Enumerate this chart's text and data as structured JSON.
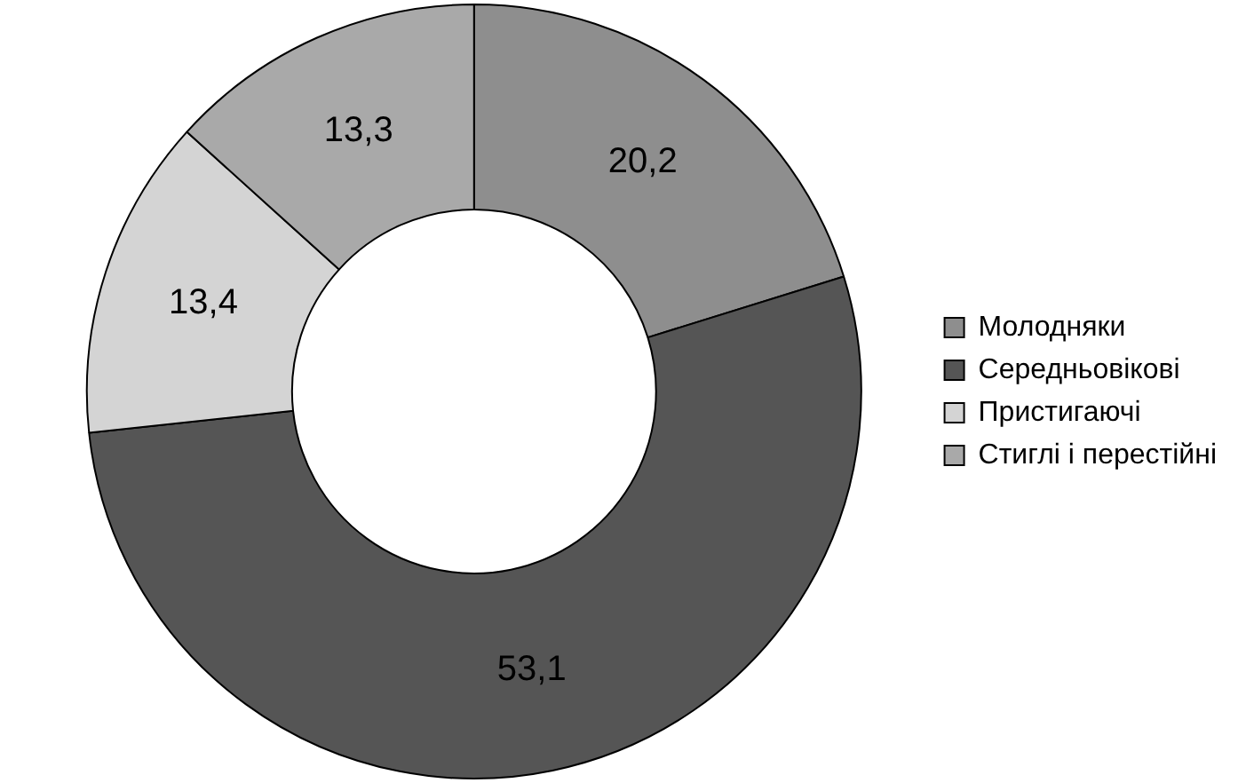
{
  "chart_data": {
    "type": "donut",
    "categories": [
      "Молодняки",
      "Середньовікові",
      "Пристигаючі",
      "Стиглі і перестійні"
    ],
    "values": [
      20.2,
      53.1,
      13.4,
      13.3
    ],
    "value_labels": [
      "20,2",
      "53,1",
      "13,4",
      "13,3"
    ],
    "colors": [
      "#8e8e8e",
      "#555555",
      "#d4d4d4",
      "#a9a9a9"
    ],
    "legend": "right"
  }
}
